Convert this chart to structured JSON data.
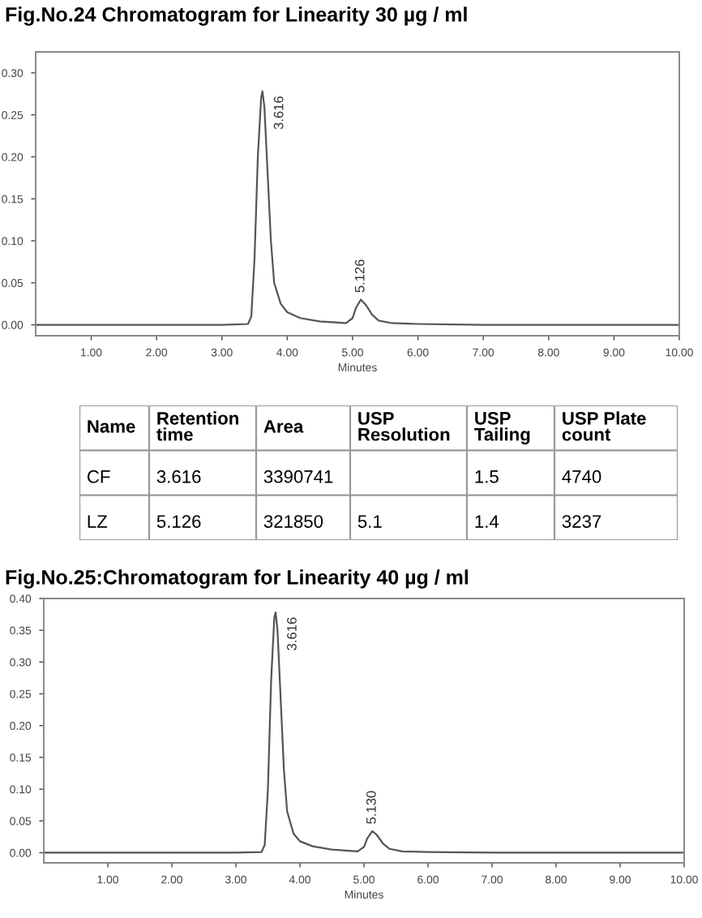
{
  "chart_data": [
    {
      "type": "line",
      "title": "Fig.No.24 Chromatogram for Linearity 30 µg / ml",
      "xlabel": "Minutes",
      "series": [
        {
          "color": "#555555",
          "x": [
            0.15,
            3.0,
            3.4,
            3.45,
            3.5,
            3.55,
            3.6,
            3.62,
            3.65,
            3.7,
            3.75,
            3.8,
            3.9,
            4.0,
            4.2,
            4.5,
            4.9,
            5.0,
            5.05,
            5.126,
            5.2,
            5.3,
            5.4,
            5.6,
            6.0,
            7.0,
            10.0
          ],
          "values": [
            0,
            0,
            0.001,
            0.01,
            0.08,
            0.2,
            0.27,
            0.278,
            0.26,
            0.18,
            0.1,
            0.05,
            0.025,
            0.015,
            0.008,
            0.004,
            0.002,
            0.008,
            0.02,
            0.03,
            0.024,
            0.012,
            0.005,
            0.002,
            0.001,
            0,
            0
          ]
        }
      ],
      "xlim": [
        0.15,
        10.0
      ],
      "ylim": [
        -0.013,
        0.325
      ],
      "xticks": [
        {
          "value": 1,
          "label": "1.00"
        },
        {
          "value": 2,
          "label": "2.00"
        },
        {
          "value": 3,
          "label": "3.00"
        },
        {
          "value": 4,
          "label": "4.00"
        },
        {
          "value": 5,
          "label": "5.00"
        },
        {
          "value": 6,
          "label": "6.00"
        },
        {
          "value": 7,
          "label": "7.00"
        },
        {
          "value": 8,
          "label": "8.00"
        },
        {
          "value": 9,
          "label": "9.00"
        },
        {
          "value": 10,
          "label": "10.00"
        }
      ],
      "yticks": [
        {
          "value": 0,
          "label": "0.00"
        },
        {
          "value": 0.05,
          "label": "0.05"
        },
        {
          "value": 0.1,
          "label": "0.10"
        },
        {
          "value": 0.15,
          "label": "0.15"
        },
        {
          "value": 0.2,
          "label": "0.20"
        },
        {
          "value": 0.25,
          "label": "0.25"
        },
        {
          "value": 0.3,
          "label": "0.30"
        }
      ],
      "annotations": [
        {
          "text": "3.616",
          "x": 3.616,
          "y": 0.278
        },
        {
          "text": "5.126",
          "x": 5.126,
          "y": 0.03
        }
      ]
    },
    {
      "type": "other",
      "categories": [
        "Name",
        "Retention time",
        "Area",
        "USP Resolution",
        "USP Tailing",
        "USP Plate count"
      ],
      "cell_labels": [
        [
          "CF",
          "3.616",
          "3390741",
          null,
          "1.5",
          "4740"
        ],
        [
          "LZ",
          "5.126",
          "321850",
          "5.1",
          "1.4",
          "3237"
        ]
      ]
    },
    {
      "type": "line",
      "title": "Fig.No.25:Chromatogram for Linearity 40 µg / ml",
      "xlabel": "Minutes",
      "series": [
        {
          "color": "#555555",
          "x": [
            0,
            3.0,
            3.4,
            3.45,
            3.5,
            3.55,
            3.6,
            3.62,
            3.65,
            3.7,
            3.75,
            3.8,
            3.9,
            4.0,
            4.2,
            4.5,
            4.9,
            5.0,
            5.05,
            5.13,
            5.2,
            5.3,
            5.4,
            5.6,
            6.0,
            7.0,
            10.0
          ],
          "values": [
            0,
            0,
            0.001,
            0.012,
            0.1,
            0.27,
            0.37,
            0.378,
            0.35,
            0.24,
            0.13,
            0.065,
            0.03,
            0.018,
            0.01,
            0.005,
            0.002,
            0.009,
            0.022,
            0.034,
            0.028,
            0.014,
            0.006,
            0.002,
            0.001,
            0,
            0
          ]
        }
      ],
      "xlim": [
        0,
        10.0
      ],
      "ylim": [
        -0.016,
        0.4
      ],
      "xticks": [
        {
          "value": 1,
          "label": "1.00"
        },
        {
          "value": 2,
          "label": "2.00"
        },
        {
          "value": 3,
          "label": "3.00"
        },
        {
          "value": 4,
          "label": "4.00"
        },
        {
          "value": 5,
          "label": "5.00"
        },
        {
          "value": 6,
          "label": "6.00"
        },
        {
          "value": 7,
          "label": "7.00"
        },
        {
          "value": 8,
          "label": "8.00"
        },
        {
          "value": 9,
          "label": "9.00"
        },
        {
          "value": 10,
          "label": "10.00"
        }
      ],
      "yticks": [
        {
          "value": 0,
          "label": "0.00"
        },
        {
          "value": 0.05,
          "label": "0.05"
        },
        {
          "value": 0.1,
          "label": "0.10"
        },
        {
          "value": 0.15,
          "label": "0.15"
        },
        {
          "value": 0.2,
          "label": "0.20"
        },
        {
          "value": 0.25,
          "label": "0.25"
        },
        {
          "value": 0.3,
          "label": "0.30"
        },
        {
          "value": 0.35,
          "label": "0.35"
        },
        {
          "value": 0.4,
          "label": "0.40"
        }
      ],
      "annotations": [
        {
          "text": "3.616",
          "x": 3.616,
          "y": 0.378
        },
        {
          "text": "5.130",
          "x": 5.13,
          "y": 0.034
        }
      ]
    }
  ]
}
